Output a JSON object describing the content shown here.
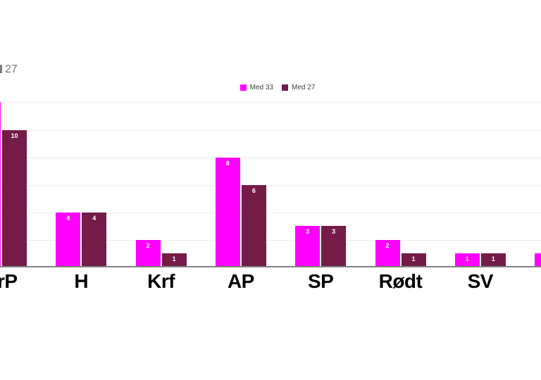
{
  "title": {
    "fragment": "27"
  },
  "legend": {
    "items": [
      {
        "label": "Med 33",
        "color": "#ff00ff"
      },
      {
        "label": "Med 27",
        "color": "#741b47"
      }
    ]
  },
  "chart_data": {
    "type": "bar",
    "categories": [
      "FrP",
      "H",
      "Krf",
      "AP",
      "SP",
      "Rødt",
      "SV",
      ""
    ],
    "series": [
      {
        "name": "Med 33",
        "color": "#ff00ff",
        "values": [
          12,
          4,
          2,
          8,
          3,
          2,
          1,
          1
        ]
      },
      {
        "name": "Med 27",
        "color": "#741b47",
        "values": [
          10,
          4,
          1,
          6,
          3,
          1,
          1,
          null
        ]
      }
    ],
    "value_labels_shown": true,
    "ylim": [
      0,
      12
    ],
    "gridline_step": 2,
    "grid": true,
    "legend_position": "top-center",
    "colors": {
      "gridline": "#e9e9e9",
      "baseline": "#808080",
      "axis_label": "#000000",
      "value_label": "#ffffff",
      "title": "#757575"
    }
  }
}
